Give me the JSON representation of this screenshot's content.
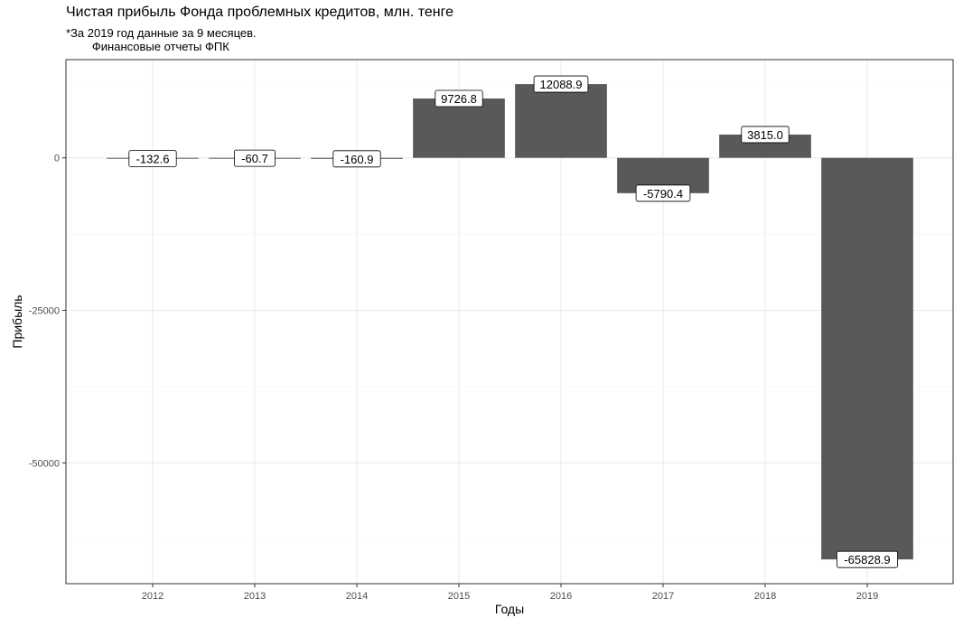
{
  "chart_data": {
    "type": "bar",
    "title": "Чистая прибыль Фонда проблемных кредитов, млн. тенге",
    "subtitle": "*За 2019 год данные за 9 месяцев.\n        Финансовые отчеты ФПК",
    "xlabel": "Годы",
    "ylabel": "Прибыль",
    "categories": [
      "2012",
      "2013",
      "2014",
      "2015",
      "2016",
      "2017",
      "2018",
      "2019"
    ],
    "values": [
      -132.6,
      -60.7,
      -160.9,
      9726.8,
      12088.9,
      -5790.4,
      3815.0,
      -65828.9
    ],
    "value_labels": [
      "-132.6",
      "-60.7",
      "-160.9",
      "9726.8",
      "12088.9",
      "-5790.4",
      "3815.0",
      "-65828.9"
    ],
    "ylim": [
      -69800,
      16100
    ],
    "yticks": [
      0,
      -25000,
      -50000
    ],
    "ytick_labels": [
      "0",
      "-25000",
      "-50000"
    ],
    "grid": true,
    "legend": "none",
    "colors": {
      "bar": "#595959",
      "panel_border": "#333333",
      "grid_major": "#ebebeb",
      "grid_minor": "#f5f5f5"
    }
  }
}
